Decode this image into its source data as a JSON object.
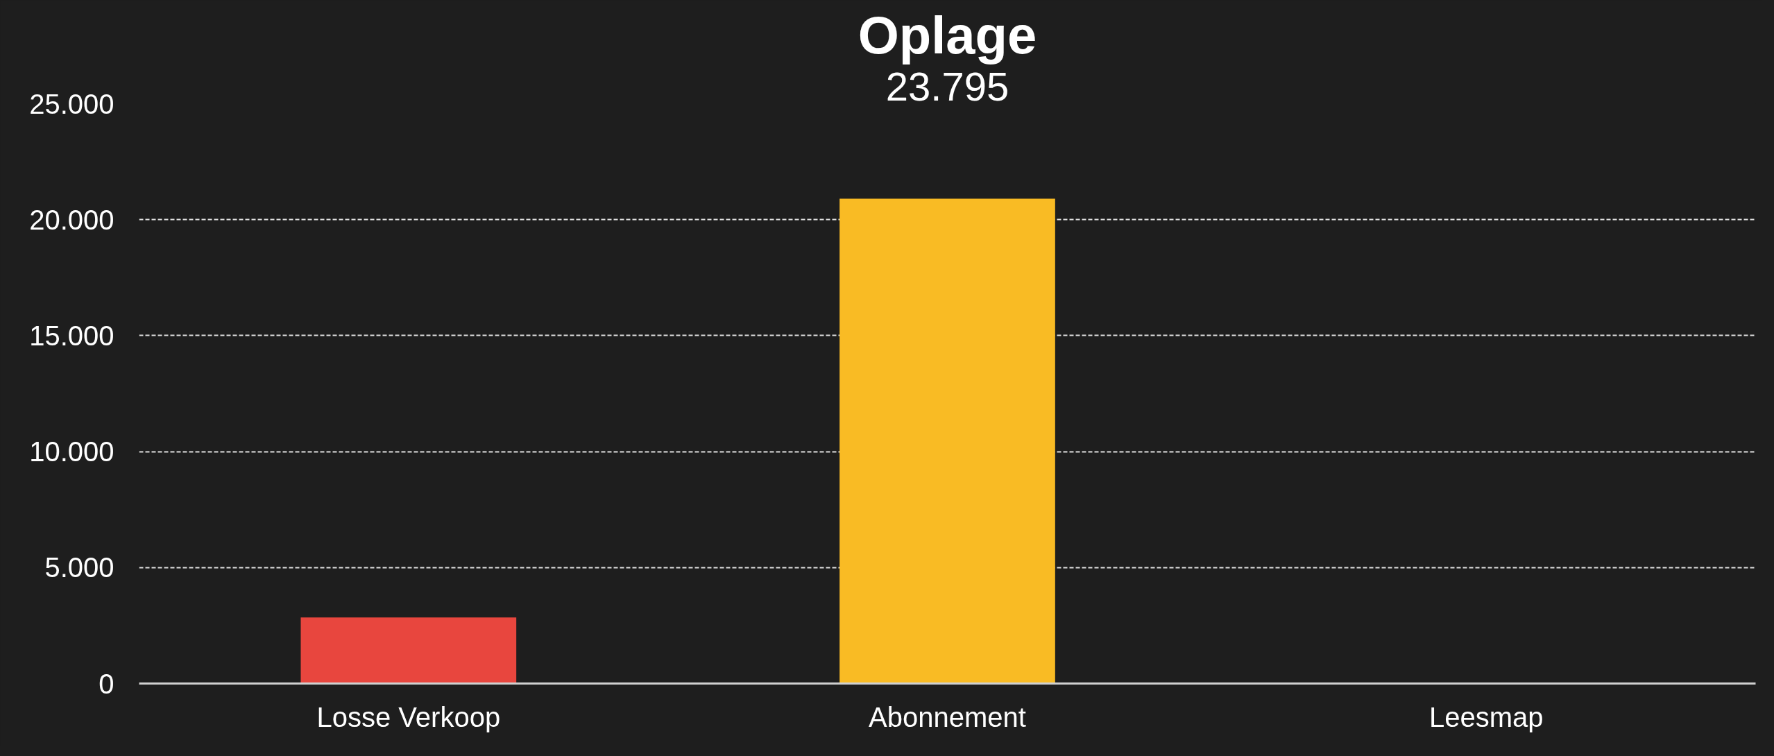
{
  "chart_data": {
    "type": "bar",
    "title": "Oplage",
    "subtitle": "23.795",
    "categories": [
      "Losse Verkoop",
      "Abonnement",
      "Leesmap"
    ],
    "values": [
      2850,
      20900,
      0
    ],
    "colors": [
      "#e8463e",
      "#f9bb24",
      "#f9bb24"
    ],
    "ylim": [
      0,
      25000
    ],
    "yticks": [
      {
        "value": 0,
        "label": "0"
      },
      {
        "value": 5000,
        "label": "5.000"
      },
      {
        "value": 10000,
        "label": "10.000"
      },
      {
        "value": 15000,
        "label": "15.000"
      },
      {
        "value": 20000,
        "label": "20.000"
      },
      {
        "value": 25000,
        "label": "25.000"
      }
    ],
    "grid": "y"
  }
}
